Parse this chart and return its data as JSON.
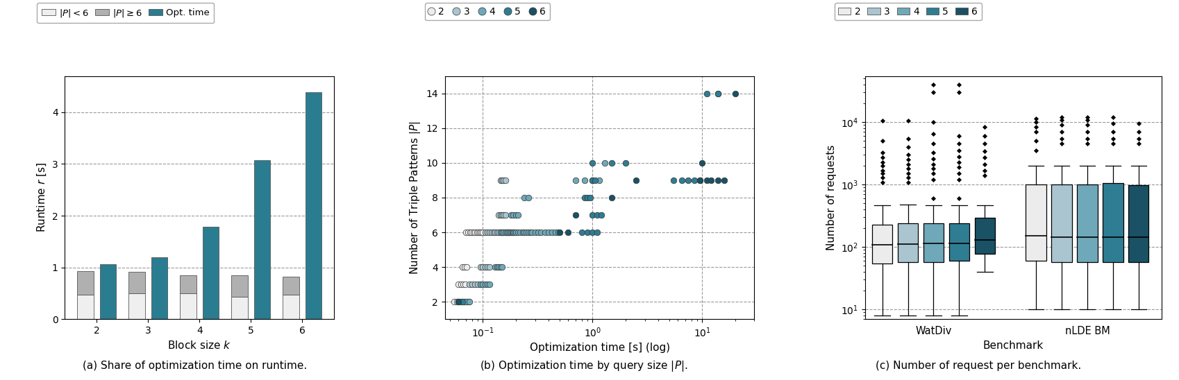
{
  "colors": {
    "2": "#ececec",
    "3": "#aac5cf",
    "4": "#6fa8b8",
    "5": "#2f7d93",
    "6": "#1a5165"
  },
  "bar_colors": {
    "lt6": "#efefef",
    "ge6": "#b0b0b0",
    "opt": "#2a7d91"
  },
  "bar_data": {
    "k": [
      2,
      3,
      4,
      5,
      6
    ],
    "lt6": [
      0.47,
      0.5,
      0.5,
      0.43,
      0.47
    ],
    "ge6": [
      0.93,
      0.92,
      0.85,
      0.85,
      0.82
    ],
    "opt": [
      1.06,
      1.2,
      1.78,
      3.07,
      4.38
    ]
  },
  "scatter": {
    "2": {
      "x": [
        0.055,
        0.058,
        0.061,
        0.064,
        0.06,
        0.063,
        0.066,
        0.069,
        0.065,
        0.068,
        0.071,
        0.07,
        0.073,
        0.076,
        0.079,
        0.082,
        0.085,
        0.088,
        0.091,
        0.094,
        0.097,
        0.1
      ],
      "y": [
        2,
        2,
        2,
        2,
        3,
        3,
        3,
        3,
        4,
        4,
        4,
        6,
        6,
        6,
        6,
        6,
        6,
        6,
        6,
        6,
        6,
        6
      ]
    },
    "3": {
      "x": [
        0.065,
        0.068,
        0.071,
        0.074,
        0.075,
        0.08,
        0.085,
        0.09,
        0.095,
        0.095,
        0.1,
        0.105,
        0.11,
        0.115,
        0.105,
        0.11,
        0.115,
        0.12,
        0.125,
        0.13,
        0.135,
        0.14,
        0.145,
        0.15,
        0.155,
        0.16,
        0.165,
        0.17,
        0.175,
        0.14,
        0.145,
        0.15,
        0.155,
        0.16,
        0.145,
        0.15,
        0.155,
        0.16
      ],
      "y": [
        2,
        2,
        2,
        2,
        3,
        3,
        3,
        3,
        3,
        4,
        4,
        4,
        4,
        4,
        6,
        6,
        6,
        6,
        6,
        6,
        6,
        6,
        6,
        6,
        6,
        6,
        6,
        6,
        6,
        7,
        7,
        7,
        7,
        7,
        9,
        9,
        9,
        9
      ]
    },
    "4": {
      "x": [
        0.07,
        0.075,
        0.095,
        0.1,
        0.105,
        0.11,
        0.115,
        0.13,
        0.135,
        0.14,
        0.145,
        0.15,
        0.145,
        0.15,
        0.155,
        0.16,
        0.165,
        0.17,
        0.175,
        0.18,
        0.185,
        0.19,
        0.195,
        0.2,
        0.21,
        0.22,
        0.23,
        0.24,
        0.25,
        0.26,
        0.27,
        0.28,
        0.3,
        0.32,
        0.34,
        0.37,
        0.4,
        0.43,
        0.46,
        0.49,
        0.18,
        0.19,
        0.2,
        0.21,
        0.24,
        0.26,
        0.7,
        0.85,
        1.0,
        1.15,
        1.3,
        14.0
      ],
      "y": [
        2,
        2,
        3,
        3,
        3,
        3,
        3,
        4,
        4,
        4,
        4,
        4,
        6,
        6,
        6,
        6,
        6,
        6,
        6,
        6,
        6,
        6,
        6,
        6,
        6,
        6,
        6,
        6,
        6,
        6,
        6,
        6,
        6,
        6,
        6,
        6,
        6,
        6,
        6,
        6,
        7,
        7,
        7,
        7,
        8,
        8,
        9,
        9,
        9,
        9,
        10,
        14
      ]
    },
    "5": {
      "x": [
        0.06,
        0.065,
        0.8,
        0.9,
        1.0,
        1.1,
        1.0,
        1.1,
        1.2,
        0.85,
        0.9,
        0.95,
        1.0,
        1.05,
        1.0,
        1.5,
        2.0,
        5.5,
        6.5,
        7.5,
        8.5,
        9.5,
        11.0,
        14.0
      ],
      "y": [
        2,
        2,
        6,
        6,
        6,
        6,
        7,
        7,
        7,
        8,
        8,
        8,
        9,
        9,
        10,
        10,
        10,
        9,
        9,
        9,
        9,
        9,
        14,
        14
      ]
    },
    "6": {
      "x": [
        0.06,
        0.5,
        0.6,
        0.7,
        1.5,
        2.5,
        9.5,
        11.0,
        12.0,
        14.0,
        16.0,
        10.0,
        20.0
      ],
      "y": [
        2,
        6,
        6,
        7,
        8,
        9,
        9,
        9,
        9,
        9,
        9,
        10,
        14
      ]
    }
  },
  "boxplot": {
    "WatDiv": {
      "2": {
        "whislo": 8,
        "q1": 55,
        "med": 110,
        "q3": 230,
        "whishi": 470,
        "fliers_lo": [],
        "fliers_hi": [
          1100,
          1300,
          1500,
          1700,
          2000,
          2300,
          2700,
          3300,
          5000,
          10500
        ]
      },
      "3": {
        "whislo": 8,
        "q1": 58,
        "med": 112,
        "q3": 240,
        "whishi": 480,
        "fliers_lo": [],
        "fliers_hi": [
          1100,
          1300,
          1500,
          1800,
          2100,
          2500,
          3000,
          4000,
          5500,
          10500
        ]
      },
      "4": {
        "whislo": 8,
        "q1": 58,
        "med": 115,
        "q3": 240,
        "whishi": 470,
        "fliers_lo": [],
        "fliers_hi": [
          600,
          1200,
          1500,
          1800,
          2100,
          2600,
          3300,
          4500,
          6500,
          10000,
          30000,
          40000
        ]
      },
      "5": {
        "whislo": 8,
        "q1": 60,
        "med": 115,
        "q3": 240,
        "whishi": 470,
        "fliers_lo": [],
        "fliers_hi": [
          600,
          1200,
          1500,
          1900,
          2300,
          2800,
          3500,
          4500,
          6000,
          30000,
          40000
        ]
      },
      "6": {
        "whislo": 40,
        "q1": 78,
        "med": 130,
        "q3": 295,
        "whishi": 470,
        "fliers_lo": [],
        "fliers_hi": [
          1400,
          1700,
          2100,
          2700,
          3400,
          4500,
          6000,
          8500
        ]
      }
    },
    "nLDE": {
      "2": {
        "whislo": 10,
        "q1": 60,
        "med": 150,
        "q3": 1000,
        "whishi": 2000,
        "fliers_lo": [
          3500
        ],
        "fliers_hi": [
          5000,
          7000,
          8500,
          10000,
          11500
        ]
      },
      "3": {
        "whislo": 10,
        "q1": 58,
        "med": 145,
        "q3": 1020,
        "whishi": 2000,
        "fliers_lo": [],
        "fliers_hi": [
          4500,
          5500,
          7000,
          9000,
          11000,
          12000
        ]
      },
      "4": {
        "whislo": 10,
        "q1": 58,
        "med": 145,
        "q3": 1020,
        "whishi": 2000,
        "fliers_lo": [],
        "fliers_hi": [
          4500,
          5500,
          7000,
          9000,
          11000,
          12000
        ]
      },
      "5": {
        "whislo": 10,
        "q1": 58,
        "med": 145,
        "q3": 1050,
        "whishi": 2000,
        "fliers_lo": [],
        "fliers_hi": [
          4500,
          5500,
          7000,
          9500,
          12000
        ]
      },
      "6": {
        "whislo": 10,
        "q1": 58,
        "med": 145,
        "q3": 990,
        "whishi": 2000,
        "fliers_lo": [],
        "fliers_hi": [
          4500,
          5500,
          7000,
          9500
        ]
      }
    }
  },
  "subtitle_a": "(a) Share of optimization time on runtime.",
  "subtitle_b": "(b) Optimization time by query size $|P|$.",
  "subtitle_c": "(c) Number of request per benchmark."
}
